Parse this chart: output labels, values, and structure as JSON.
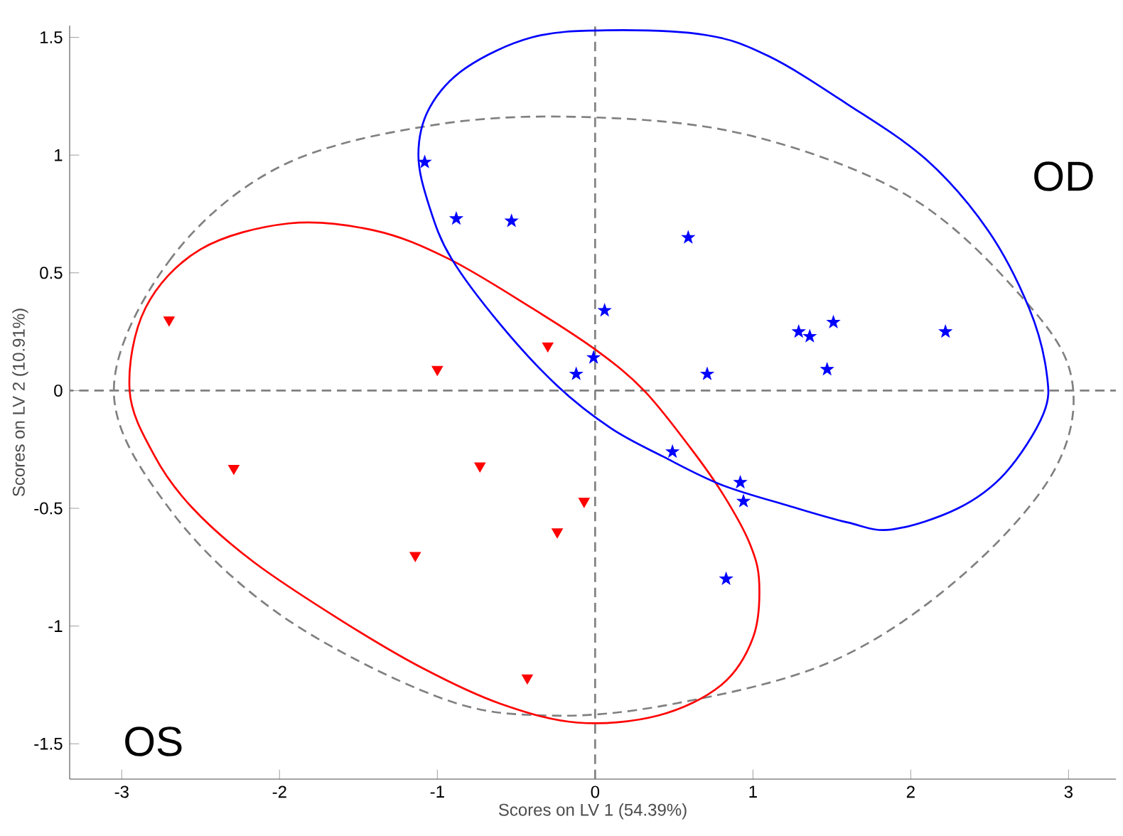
{
  "chart_data": {
    "type": "scatter",
    "xlabel": "Scores on LV 1 (54.39%)",
    "ylabel": "Scores on LV 2 (10.91%)",
    "xlim": [
      -3.33,
      3.3
    ],
    "ylim": [
      -1.65,
      1.55
    ],
    "xticks": [
      -3,
      -2,
      -1,
      0,
      1,
      2,
      3
    ],
    "yticks": [
      -1.5,
      -1,
      -0.5,
      0,
      0.5,
      1,
      1.5
    ],
    "grid": false,
    "series": [
      {
        "type": "scatter",
        "color": "#ff0000",
        "marker": "triangle",
        "x": [
          -2.7,
          -1.0,
          -0.3,
          -2.29,
          -0.73,
          -0.07,
          -0.24,
          -1.14,
          -0.43
        ],
        "values": [
          0.3,
          0.09,
          0.19,
          -0.33,
          -0.32,
          -0.47,
          -0.6,
          -0.7,
          -1.22
        ]
      },
      {
        "type": "scatter",
        "color": "#0000ff",
        "marker": "star",
        "x": [
          -1.08,
          -0.88,
          -0.53,
          0.59,
          0.06,
          1.29,
          1.36,
          1.51,
          2.22,
          -0.01,
          -0.12,
          0.71,
          1.47,
          0.49,
          0.92,
          0.94,
          0.83
        ],
        "values": [
          0.97,
          0.73,
          0.72,
          0.65,
          0.34,
          0.25,
          0.23,
          0.29,
          0.25,
          0.14,
          0.07,
          0.07,
          0.09,
          -0.26,
          -0.39,
          -0.47,
          -0.8
        ]
      }
    ],
    "ref_lines": [
      {
        "axis": "x",
        "value": 0,
        "color": "#808080",
        "line_style": "dashed"
      },
      {
        "axis": "y",
        "value": 0,
        "color": "#808080",
        "line_style": "dashed"
      }
    ],
    "annotations": [
      "OD",
      "OS"
    ]
  }
}
